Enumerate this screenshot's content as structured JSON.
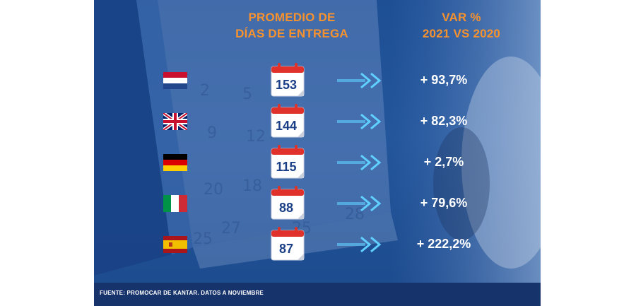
{
  "headers": {
    "left_line1": "PROMEDIO DE",
    "left_line2": "DÍAS DE ENTREGA",
    "right_line1": "VAR %",
    "right_line2": "2021 VS 2020"
  },
  "footer": "FUENTE: PROMOCAR DE KANTAR. DATOS A NOVIEMBRE",
  "colors": {
    "accent": "#f7922e",
    "background": "#1e4f95",
    "calendar_red": "#e0312a",
    "number_blue": "#1b3f86",
    "arrow_cyan": "#5fd0ff"
  },
  "chart_data": {
    "type": "table",
    "columns": [
      "PROMEDIO DE DÍAS DE ENTREGA",
      "VAR % 2021 VS 2020"
    ],
    "rows": [
      {
        "flag": "netherlands-flag",
        "days": "153",
        "var": "+ 93,7%"
      },
      {
        "flag": "uk-flag",
        "days": "144",
        "var": "+ 82,3%"
      },
      {
        "flag": "germany-flag",
        "days": "115",
        "var": "+ 2,7%"
      },
      {
        "flag": "italy-flag",
        "days": "88",
        "var": "+ 79,6%"
      },
      {
        "flag": "spain-flag",
        "days": "87",
        "var": "+ 222,2%"
      }
    ],
    "days_values": [
      153,
      144,
      115,
      88,
      87
    ],
    "var_values": [
      93.7,
      82.3,
      2.7,
      79.6,
      222.2
    ]
  }
}
